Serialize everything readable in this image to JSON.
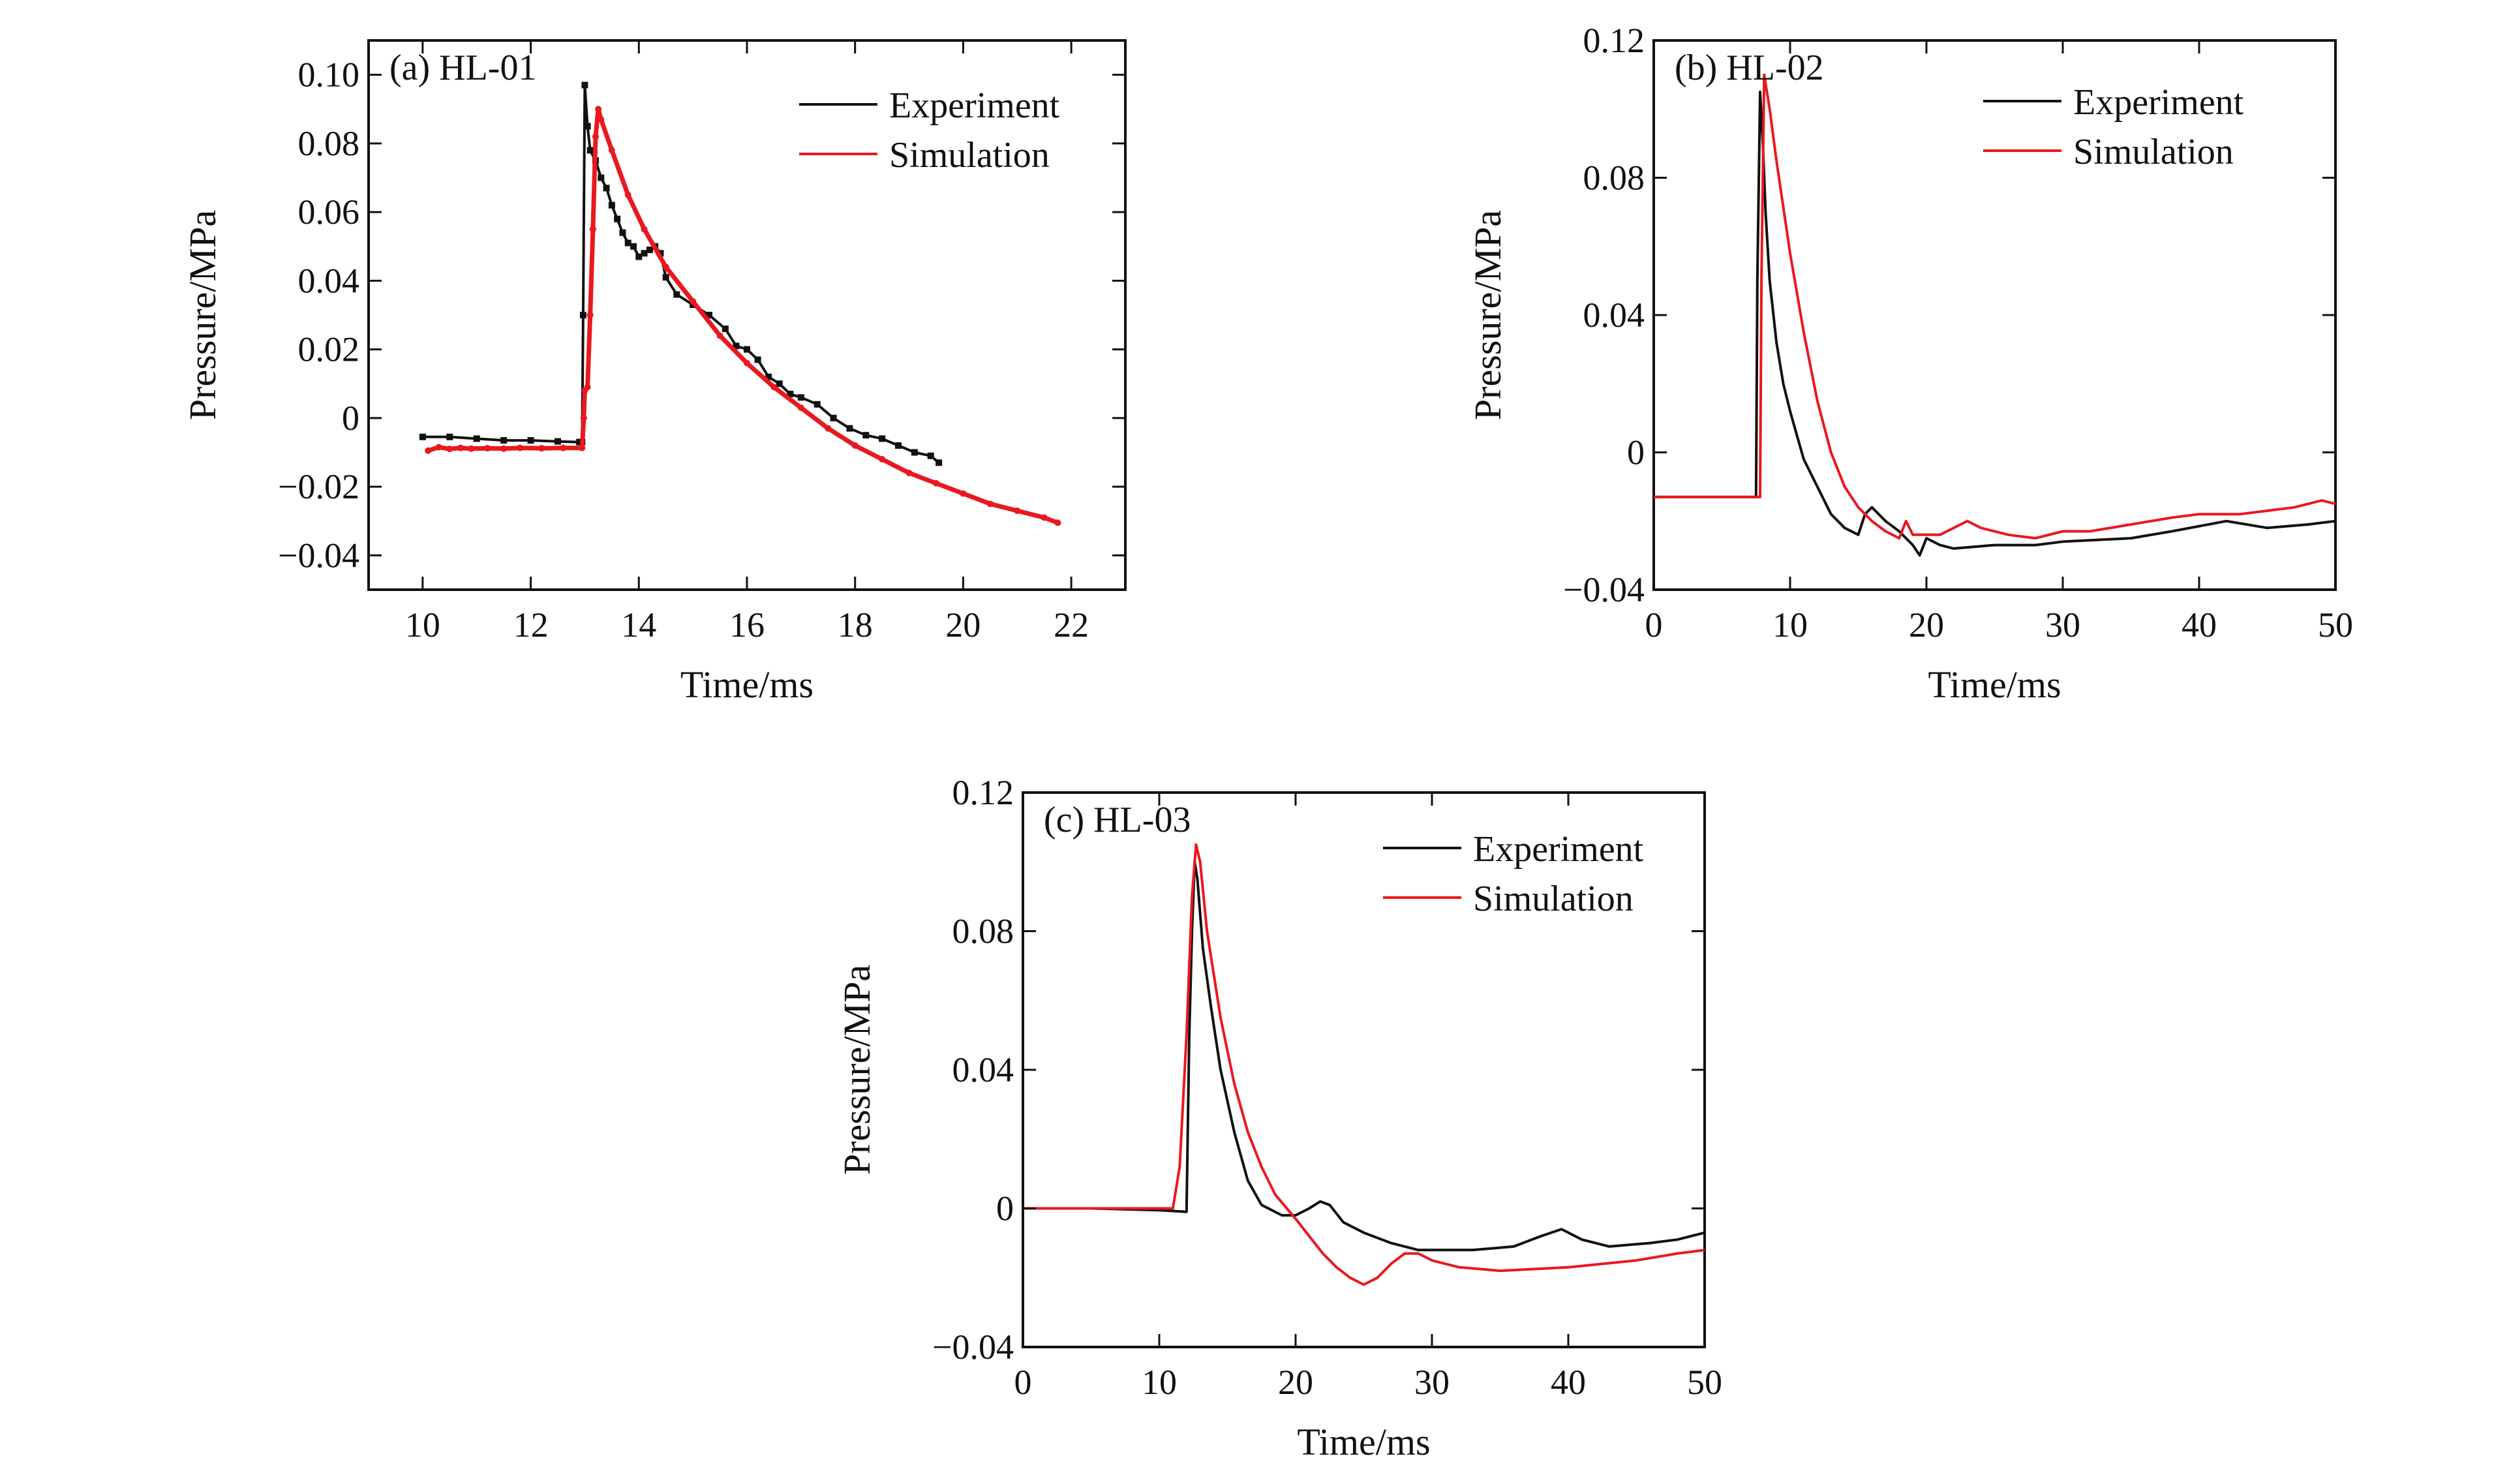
{
  "chart_data": [
    {
      "id": "a",
      "type": "line",
      "panel_label": "(a) HL-01",
      "xlabel": "Time/ms",
      "ylabel": "Pressure/MPa",
      "xlim": [
        9,
        23
      ],
      "ylim": [
        -0.05,
        0.11
      ],
      "xticks": [
        10,
        12,
        14,
        16,
        18,
        20,
        22
      ],
      "xtick_labels": [
        "10",
        "12",
        "14",
        "16",
        "18",
        "20",
        "22"
      ],
      "yticks": [
        -0.04,
        -0.02,
        0,
        0.02,
        0.04,
        0.06,
        0.08,
        0.1
      ],
      "ytick_labels": [
        "−0.04",
        "−0.02",
        "0",
        "0.02",
        "0.04",
        "0.06",
        "0.08",
        "0.10"
      ],
      "legend_position": "top-right",
      "series": [
        {
          "name": "Experiment",
          "color": "#111111",
          "marker": "square",
          "points": [
            [
              10.0,
              -0.0055
            ],
            [
              10.5,
              -0.0055
            ],
            [
              11.0,
              -0.006
            ],
            [
              11.5,
              -0.0065
            ],
            [
              12.0,
              -0.0065
            ],
            [
              12.5,
              -0.0068
            ],
            [
              12.9,
              -0.007
            ],
            [
              12.95,
              -0.007
            ],
            [
              12.97,
              0.03
            ],
            [
              13.0,
              0.097
            ],
            [
              13.05,
              0.085
            ],
            [
              13.1,
              0.078
            ],
            [
              13.2,
              0.075
            ],
            [
              13.3,
              0.07
            ],
            [
              13.4,
              0.067
            ],
            [
              13.5,
              0.062
            ],
            [
              13.6,
              0.058
            ],
            [
              13.7,
              0.054
            ],
            [
              13.8,
              0.051
            ],
            [
              13.9,
              0.05
            ],
            [
              14.0,
              0.047
            ],
            [
              14.1,
              0.048
            ],
            [
              14.2,
              0.049
            ],
            [
              14.3,
              0.05
            ],
            [
              14.4,
              0.048
            ],
            [
              14.5,
              0.041
            ],
            [
              14.7,
              0.036
            ],
            [
              15.0,
              0.033
            ],
            [
              15.3,
              0.03
            ],
            [
              15.6,
              0.026
            ],
            [
              15.8,
              0.021
            ],
            [
              16.0,
              0.02
            ],
            [
              16.2,
              0.017
            ],
            [
              16.4,
              0.012
            ],
            [
              16.6,
              0.01
            ],
            [
              16.8,
              0.007
            ],
            [
              17.0,
              0.006
            ],
            [
              17.3,
              0.004
            ],
            [
              17.6,
              0.0
            ],
            [
              17.9,
              -0.003
            ],
            [
              18.2,
              -0.005
            ],
            [
              18.5,
              -0.006
            ],
            [
              18.8,
              -0.008
            ],
            [
              19.1,
              -0.01
            ],
            [
              19.4,
              -0.011
            ],
            [
              19.55,
              -0.013
            ]
          ]
        },
        {
          "name": "Simulation",
          "color": "#e8191f",
          "marker": "dot",
          "points": [
            [
              10.1,
              -0.0095
            ],
            [
              10.3,
              -0.0085
            ],
            [
              10.5,
              -0.009
            ],
            [
              10.7,
              -0.0087
            ],
            [
              10.9,
              -0.0089
            ],
            [
              11.2,
              -0.0088
            ],
            [
              11.5,
              -0.0089
            ],
            [
              11.8,
              -0.0087
            ],
            [
              12.2,
              -0.0088
            ],
            [
              12.6,
              -0.0087
            ],
            [
              12.95,
              -0.0087
            ],
            [
              12.98,
              0.0
            ],
            [
              13.0,
              0.008
            ],
            [
              13.05,
              0.009
            ],
            [
              13.1,
              0.03
            ],
            [
              13.15,
              0.055
            ],
            [
              13.2,
              0.082
            ],
            [
              13.25,
              0.09
            ],
            [
              13.3,
              0.087
            ],
            [
              13.5,
              0.078
            ],
            [
              13.8,
              0.065
            ],
            [
              14.1,
              0.055
            ],
            [
              14.5,
              0.044
            ],
            [
              15.0,
              0.034
            ],
            [
              15.5,
              0.024
            ],
            [
              16.0,
              0.016
            ],
            [
              16.5,
              0.009
            ],
            [
              17.0,
              0.003
            ],
            [
              17.5,
              -0.003
            ],
            [
              18.0,
              -0.008
            ],
            [
              18.5,
              -0.012
            ],
            [
              19.0,
              -0.016
            ],
            [
              19.5,
              -0.019
            ],
            [
              20.0,
              -0.022
            ],
            [
              20.5,
              -0.025
            ],
            [
              21.0,
              -0.027
            ],
            [
              21.5,
              -0.029
            ],
            [
              21.75,
              -0.0305
            ]
          ]
        }
      ]
    },
    {
      "id": "b",
      "type": "line",
      "panel_label": "(b) HL-02",
      "xlabel": "Time/ms",
      "ylabel": "Pressure/MPa",
      "xlim": [
        0,
        50
      ],
      "ylim": [
        -0.04,
        0.12
      ],
      "xticks": [
        0,
        10,
        20,
        30,
        40,
        50
      ],
      "xtick_labels": [
        "0",
        "10",
        "20",
        "30",
        "40",
        "50"
      ],
      "yticks": [
        -0.04,
        0,
        0.04,
        0.08,
        0.12
      ],
      "ytick_labels": [
        "−0.04",
        "0",
        "0.04",
        "0.08",
        "0.12"
      ],
      "legend_position": "top-right",
      "series": [
        {
          "name": "Experiment",
          "color": "#111111",
          "marker": "none",
          "points": [
            [
              0,
              -0.013
            ],
            [
              5,
              -0.013
            ],
            [
              7.5,
              -0.013
            ],
            [
              7.6,
              0.05
            ],
            [
              7.8,
              0.105
            ],
            [
              8.0,
              0.09
            ],
            [
              8.2,
              0.07
            ],
            [
              8.5,
              0.05
            ],
            [
              9.0,
              0.032
            ],
            [
              9.5,
              0.02
            ],
            [
              10.0,
              0.012
            ],
            [
              10.5,
              0.005
            ],
            [
              11,
              -0.002
            ],
            [
              12,
              -0.01
            ],
            [
              13,
              -0.018
            ],
            [
              14,
              -0.022
            ],
            [
              15,
              -0.024
            ],
            [
              15.5,
              -0.018
            ],
            [
              16,
              -0.016
            ],
            [
              17,
              -0.02
            ],
            [
              18,
              -0.023
            ],
            [
              19,
              -0.027
            ],
            [
              19.5,
              -0.03
            ],
            [
              20,
              -0.025
            ],
            [
              21,
              -0.027
            ],
            [
              22,
              -0.028
            ],
            [
              25,
              -0.027
            ],
            [
              28,
              -0.027
            ],
            [
              30,
              -0.026
            ],
            [
              35,
              -0.025
            ],
            [
              38,
              -0.023
            ],
            [
              42,
              -0.02
            ],
            [
              45,
              -0.022
            ],
            [
              48,
              -0.021
            ],
            [
              50,
              -0.02
            ]
          ]
        },
        {
          "name": "Simulation",
          "color": "#e8191f",
          "marker": "none",
          "points": [
            [
              0,
              -0.013
            ],
            [
              5,
              -0.013
            ],
            [
              7.8,
              -0.013
            ],
            [
              7.9,
              0.05
            ],
            [
              8.1,
              0.11
            ],
            [
              8.5,
              0.1
            ],
            [
              9,
              0.085
            ],
            [
              10,
              0.058
            ],
            [
              11,
              0.035
            ],
            [
              12,
              0.015
            ],
            [
              13,
              0.0
            ],
            [
              14,
              -0.01
            ],
            [
              15,
              -0.016
            ],
            [
              16,
              -0.02
            ],
            [
              17,
              -0.023
            ],
            [
              18,
              -0.025
            ],
            [
              18.5,
              -0.02
            ],
            [
              19,
              -0.024
            ],
            [
              20,
              -0.024
            ],
            [
              21,
              -0.024
            ],
            [
              22,
              -0.022
            ],
            [
              23,
              -0.02
            ],
            [
              24,
              -0.022
            ],
            [
              26,
              -0.024
            ],
            [
              28,
              -0.025
            ],
            [
              30,
              -0.023
            ],
            [
              32,
              -0.023
            ],
            [
              35,
              -0.021
            ],
            [
              38,
              -0.019
            ],
            [
              40,
              -0.018
            ],
            [
              43,
              -0.018
            ],
            [
              45,
              -0.017
            ],
            [
              47,
              -0.016
            ],
            [
              49,
              -0.014
            ],
            [
              50,
              -0.015
            ]
          ]
        }
      ]
    },
    {
      "id": "c",
      "type": "line",
      "panel_label": "(c) HL-03",
      "xlabel": "Time/ms",
      "ylabel": "Pressure/MPa",
      "xlim": [
        0,
        50
      ],
      "ylim": [
        -0.04,
        0.12
      ],
      "xticks": [
        0,
        10,
        20,
        30,
        40,
        50
      ],
      "xtick_labels": [
        "0",
        "10",
        "20",
        "30",
        "40",
        "50"
      ],
      "yticks": [
        -0.04,
        0,
        0.04,
        0.08,
        0.12
      ],
      "ytick_labels": [
        "−0.04",
        "0",
        "0.04",
        "0.08",
        "0.12"
      ],
      "legend_position": "top-right",
      "series": [
        {
          "name": "Experiment",
          "color": "#111111",
          "marker": "none",
          "points": [
            [
              0,
              0
            ],
            [
              5,
              0
            ],
            [
              10,
              -0.0005
            ],
            [
              12.0,
              -0.001
            ],
            [
              12.2,
              0.05
            ],
            [
              12.4,
              0.08
            ],
            [
              12.6,
              0.1
            ],
            [
              12.8,
              0.095
            ],
            [
              13.2,
              0.075
            ],
            [
              13.8,
              0.058
            ],
            [
              14.5,
              0.04
            ],
            [
              15.5,
              0.022
            ],
            [
              16.5,
              0.008
            ],
            [
              17.5,
              0.001
            ],
            [
              19,
              -0.002
            ],
            [
              20,
              -0.002
            ],
            [
              21,
              0.0
            ],
            [
              21.8,
              0.002
            ],
            [
              22.5,
              0.001
            ],
            [
              23.5,
              -0.004
            ],
            [
              25,
              -0.007
            ],
            [
              27,
              -0.01
            ],
            [
              29,
              -0.012
            ],
            [
              31,
              -0.012
            ],
            [
              33,
              -0.012
            ],
            [
              36,
              -0.011
            ],
            [
              38,
              -0.008
            ],
            [
              39.5,
              -0.006
            ],
            [
              41,
              -0.009
            ],
            [
              43,
              -0.011
            ],
            [
              46,
              -0.01
            ],
            [
              48,
              -0.009
            ],
            [
              50,
              -0.007
            ]
          ]
        },
        {
          "name": "Simulation",
          "color": "#e8191f",
          "marker": "none",
          "points": [
            [
              0,
              0
            ],
            [
              5,
              0
            ],
            [
              10,
              0
            ],
            [
              11,
              0.0
            ],
            [
              11.5,
              0.012
            ],
            [
              12,
              0.05
            ],
            [
              12.4,
              0.09
            ],
            [
              12.7,
              0.105
            ],
            [
              13.0,
              0.1
            ],
            [
              13.5,
              0.08
            ],
            [
              14.5,
              0.055
            ],
            [
              15.5,
              0.036
            ],
            [
              16.5,
              0.022
            ],
            [
              17.5,
              0.012
            ],
            [
              18.5,
              0.004
            ],
            [
              20,
              -0.003
            ],
            [
              21,
              -0.008
            ],
            [
              22,
              -0.013
            ],
            [
              23,
              -0.017
            ],
            [
              24,
              -0.02
            ],
            [
              25,
              -0.022
            ],
            [
              26,
              -0.02
            ],
            [
              27,
              -0.016
            ],
            [
              28,
              -0.013
            ],
            [
              29,
              -0.013
            ],
            [
              30,
              -0.015
            ],
            [
              32,
              -0.017
            ],
            [
              35,
              -0.018
            ],
            [
              40,
              -0.017
            ],
            [
              45,
              -0.015
            ],
            [
              48,
              -0.013
            ],
            [
              50,
              -0.012
            ]
          ]
        }
      ]
    }
  ]
}
